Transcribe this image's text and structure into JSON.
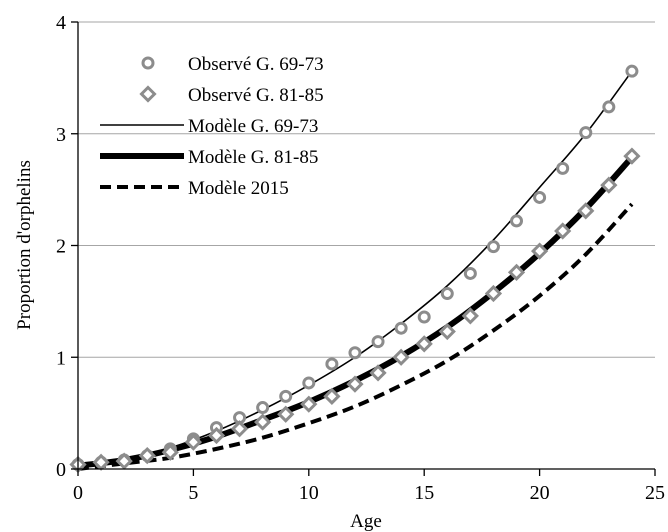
{
  "chart_data": {
    "type": "line",
    "xlabel": "Age",
    "ylabel": "Proportion d'orphelins",
    "xlim": [
      0,
      25
    ],
    "ylim": [
      0,
      4
    ],
    "xticks": [
      0,
      5,
      10,
      15,
      20,
      25
    ],
    "yticks": [
      0,
      1,
      2,
      3,
      4
    ],
    "grid": "horizontal",
    "legend_position": "top-left",
    "colors": {
      "observed_marker": "#8c8c8c",
      "gridline": "#a6a6a6",
      "model_line": "#000000"
    },
    "series": [
      {
        "name": "Observé G. 69-73",
        "kind": "scatter",
        "marker": "circle",
        "x": [
          0,
          1,
          2,
          3,
          4,
          5,
          6,
          7,
          8,
          9,
          10,
          11,
          12,
          13,
          14,
          15,
          16,
          17,
          18,
          19,
          20,
          21,
          22,
          23,
          24
        ],
        "y": [
          0.04,
          0.06,
          0.08,
          0.12,
          0.18,
          0.27,
          0.37,
          0.46,
          0.55,
          0.65,
          0.77,
          0.94,
          1.04,
          1.14,
          1.26,
          1.36,
          1.57,
          1.75,
          1.99,
          2.22,
          2.43,
          2.69,
          3.01,
          3.24,
          3.56
        ]
      },
      {
        "name": "Observé G. 81-85",
        "kind": "scatter",
        "marker": "diamond",
        "x": [
          0,
          1,
          2,
          3,
          4,
          5,
          6,
          7,
          8,
          9,
          10,
          11,
          12,
          13,
          14,
          15,
          16,
          17,
          18,
          19,
          20,
          21,
          22,
          23,
          24
        ],
        "y": [
          0.04,
          0.06,
          0.07,
          0.12,
          0.15,
          0.24,
          0.3,
          0.36,
          0.42,
          0.49,
          0.58,
          0.65,
          0.76,
          0.86,
          1.0,
          1.12,
          1.23,
          1.37,
          1.57,
          1.76,
          1.95,
          2.13,
          2.31,
          2.54,
          2.8
        ]
      },
      {
        "name": "Modèle G. 69-73",
        "kind": "line",
        "style": "thin-solid",
        "x": [
          0,
          2,
          4,
          6,
          8,
          10,
          12,
          14,
          16,
          18,
          20,
          22,
          24
        ],
        "y": [
          0.03,
          0.09,
          0.19,
          0.34,
          0.53,
          0.75,
          1.0,
          1.3,
          1.64,
          2.05,
          2.52,
          3.0,
          3.56
        ]
      },
      {
        "name": "Modèle G. 81-85",
        "kind": "line",
        "style": "thick-solid",
        "x": [
          0,
          2,
          4,
          6,
          8,
          10,
          12,
          14,
          16,
          18,
          20,
          22,
          24
        ],
        "y": [
          0.03,
          0.08,
          0.17,
          0.29,
          0.44,
          0.6,
          0.79,
          1.01,
          1.27,
          1.58,
          1.93,
          2.33,
          2.79
        ]
      },
      {
        "name": "Modèle 2015",
        "kind": "line",
        "style": "thick-dashed",
        "x": [
          0,
          2,
          4,
          6,
          8,
          10,
          12,
          14,
          16,
          18,
          20,
          22,
          24
        ],
        "y": [
          0.0,
          0.05,
          0.1,
          0.18,
          0.28,
          0.41,
          0.56,
          0.75,
          0.97,
          1.24,
          1.55,
          1.92,
          2.37
        ]
      }
    ]
  }
}
